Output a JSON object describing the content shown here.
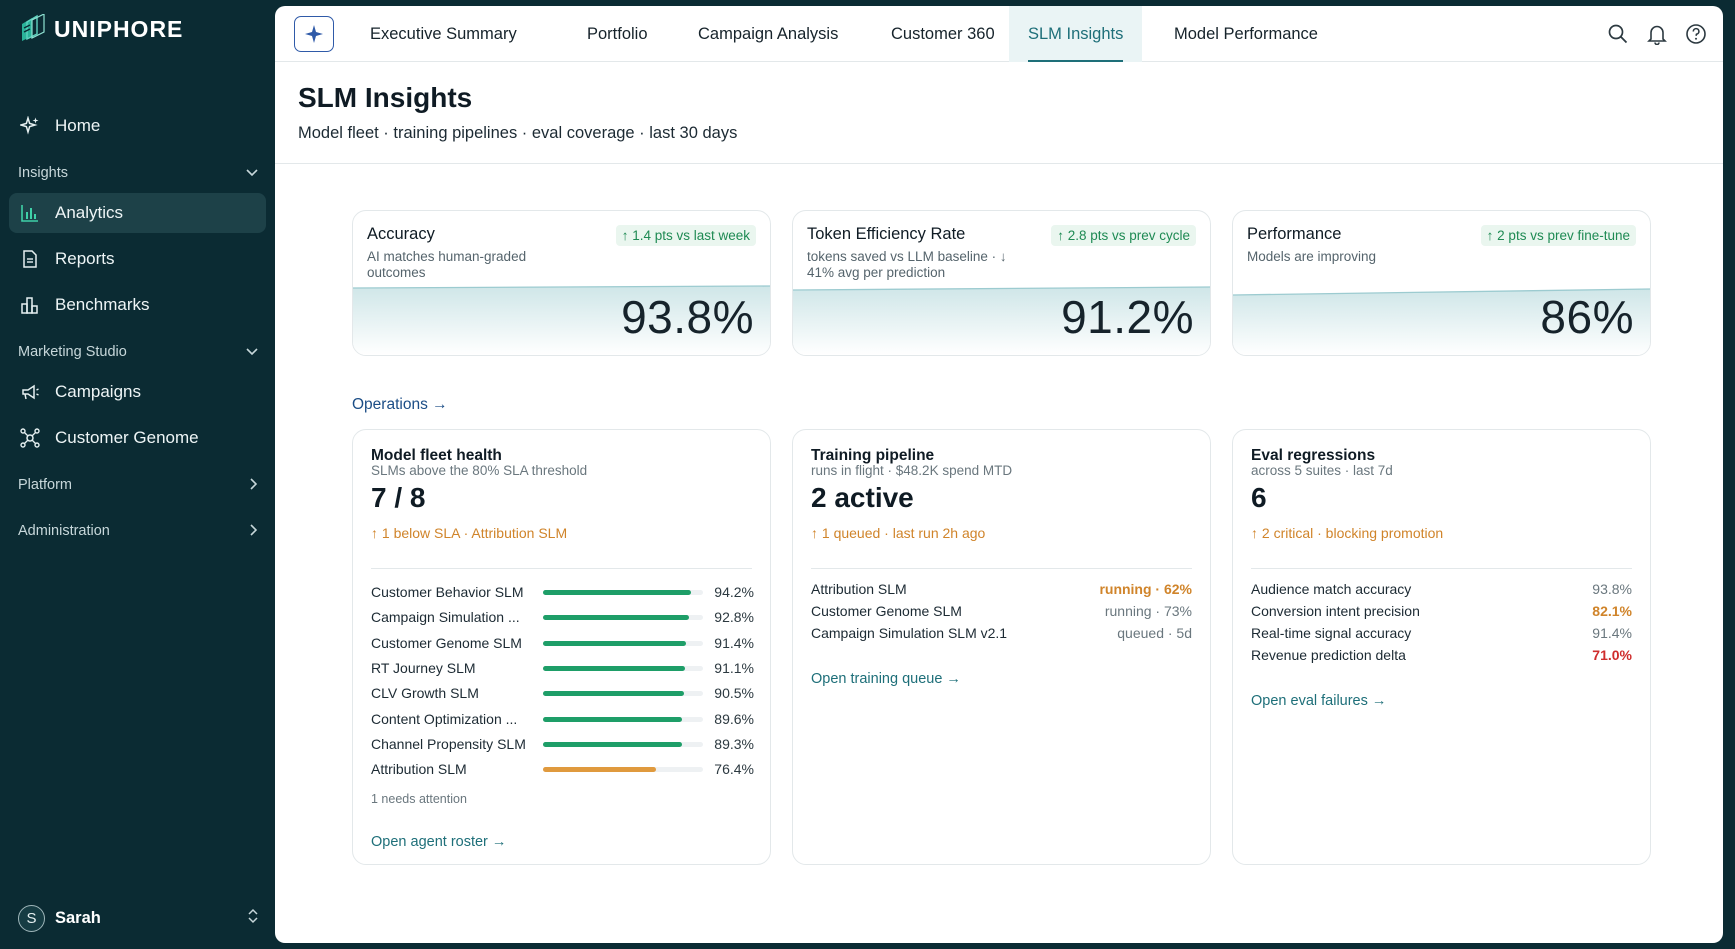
{
  "app": {
    "name": "UNIPHORE"
  },
  "sidebar": {
    "home": "Home",
    "insights_section": "Insights",
    "analytics": "Analytics",
    "reports": "Reports",
    "benchmarks": "Benchmarks",
    "marketing_section": "Marketing Studio",
    "campaigns": "Campaigns",
    "customer_genome": "Customer Genome",
    "platform_section": "Platform",
    "administration_section": "Administration",
    "user_initial": "S",
    "user_name": "Sarah"
  },
  "tabs": [
    "Executive Summary",
    "Portfolio",
    "Campaign Analysis",
    "Customer 360",
    "SLM Insights",
    "Model Performance"
  ],
  "active_tab": "SLM Insights",
  "page": {
    "title": "SLM Insights",
    "subtitle": "Model fleet · training pipelines · eval coverage · last 30 days"
  },
  "kpis": [
    {
      "title": "Accuracy",
      "desc": "AI matches human-graded outcomes",
      "badge": "↑ 1.4 pts vs last week",
      "value": "93.8%"
    },
    {
      "title": "Token Efficiency Rate",
      "desc": "tokens saved vs LLM baseline · ↓ 41% avg per prediction",
      "badge": "↑ 2.8 pts vs prev cycle",
      "value": "91.2%"
    },
    {
      "title": "Performance",
      "desc": "Models are improving",
      "badge": "↑ 2 pts vs prev fine-tune",
      "value": "86%"
    }
  ],
  "operations_link": "Operations →",
  "fleet": {
    "title": "Model fleet health",
    "sub": "SLMs above the 80% SLA threshold",
    "big": "7 / 8",
    "note": "↑ 1 below SLA · Attribution SLM",
    "rows": [
      {
        "label": "Customer Behavior SLM",
        "pct": "94.2%",
        "value": 94.2,
        "status": "ok"
      },
      {
        "label": "Campaign Simulation ...",
        "pct": "92.8%",
        "value": 92.8,
        "status": "ok"
      },
      {
        "label": "Customer Genome SLM",
        "pct": "91.4%",
        "value": 91.4,
        "status": "ok"
      },
      {
        "label": "RT Journey SLM",
        "pct": "91.1%",
        "value": 91.1,
        "status": "ok"
      },
      {
        "label": "CLV Growth SLM",
        "pct": "90.5%",
        "value": 90.5,
        "status": "ok"
      },
      {
        "label": "Content Optimization ...",
        "pct": "89.6%",
        "value": 89.6,
        "status": "ok"
      },
      {
        "label": "Channel Propensity SLM",
        "pct": "89.3%",
        "value": 89.3,
        "status": "ok"
      },
      {
        "label": "Attribution SLM",
        "pct": "76.4%",
        "value": 76.4,
        "status": "warn"
      }
    ],
    "attention": "1 needs attention",
    "link": "Open agent roster →"
  },
  "training": {
    "title": "Training pipeline",
    "sub": "runs in flight · $48.2K spend MTD",
    "big": "2 active",
    "note": "↑ 1 queued · last run 2h ago",
    "rows": [
      {
        "k": "Attribution SLM",
        "v": "running · 62%",
        "style": "warn"
      },
      {
        "k": "Customer Genome SLM",
        "v": "running · 73%",
        "style": ""
      },
      {
        "k": "Campaign Simulation SLM v2.1",
        "v": "queued · 5d",
        "style": ""
      }
    ],
    "link": "Open training queue →"
  },
  "evals": {
    "title": "Eval regressions",
    "sub": "across 5 suites · last 7d",
    "big": "6",
    "note": "↑ 2 critical · blocking promotion",
    "rows": [
      {
        "k": "Audience match accuracy",
        "v": "93.8%",
        "style": ""
      },
      {
        "k": "Conversion intent precision",
        "v": "82.1%",
        "style": "orange"
      },
      {
        "k": "Real-time signal accuracy",
        "v": "91.4%",
        "style": ""
      },
      {
        "k": "Revenue prediction delta",
        "v": "71.0%",
        "style": "red"
      }
    ],
    "link": "Open eval failures →"
  },
  "colors": {
    "bar_ok": "#1e9e68",
    "bar_warn": "#e09a3e",
    "accent": "#1e6f79"
  }
}
